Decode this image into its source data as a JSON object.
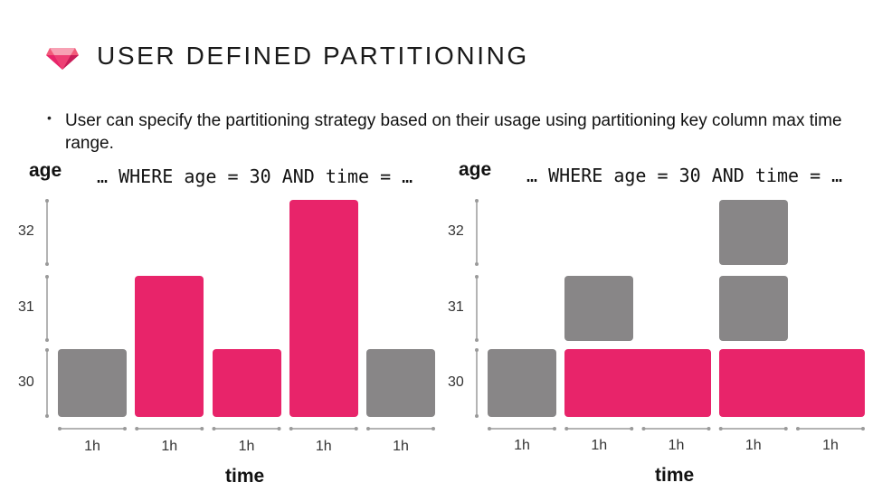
{
  "title": "USER DEFINED PARTITIONING",
  "bullet": "User can specify the partitioning strategy based on their usage using partitioning key column max time range.",
  "colors": {
    "accent": "#e8246a",
    "neutral": "#888687"
  },
  "logo_icon": "ruby-gem-icon",
  "panels": [
    {
      "y_title": "age",
      "x_title": "time",
      "query": "… WHERE age = 30 AND time = …",
      "y_ticks": [
        "30",
        "31",
        "32"
      ],
      "x_ticks": [
        "1h",
        "1h",
        "1h",
        "1h",
        "1h"
      ],
      "partitions": [
        {
          "col_start": 0,
          "col_span": 1,
          "age_min": 30,
          "age_max": 30,
          "matched": false
        },
        {
          "col_start": 1,
          "col_span": 1,
          "age_min": 30,
          "age_max": 31,
          "matched": true
        },
        {
          "col_start": 2,
          "col_span": 1,
          "age_min": 30,
          "age_max": 30,
          "matched": true
        },
        {
          "col_start": 3,
          "col_span": 1,
          "age_min": 30,
          "age_max": 32,
          "matched": true
        },
        {
          "col_start": 4,
          "col_span": 1,
          "age_min": 30,
          "age_max": 30,
          "matched": false
        }
      ]
    },
    {
      "y_title": "age",
      "x_title": "time",
      "query": "… WHERE age = 30 AND time = …",
      "y_ticks": [
        "30",
        "31",
        "32"
      ],
      "x_ticks": [
        "1h",
        "1h",
        "1h",
        "1h",
        "1h"
      ],
      "partitions": [
        {
          "col_start": 0,
          "col_span": 1,
          "age_min": 30,
          "age_max": 30,
          "matched": false
        },
        {
          "col_start": 1,
          "col_span": 2,
          "age_min": 30,
          "age_max": 30,
          "matched": true
        },
        {
          "col_start": 1,
          "col_span": 1,
          "age_min": 31,
          "age_max": 31,
          "matched": false
        },
        {
          "col_start": 3,
          "col_span": 2,
          "age_min": 30,
          "age_max": 30,
          "matched": true
        },
        {
          "col_start": 3,
          "col_span": 1,
          "age_min": 31,
          "age_max": 31,
          "matched": false
        },
        {
          "col_start": 3,
          "col_span": 1,
          "age_min": 32,
          "age_max": 32,
          "matched": false
        }
      ]
    }
  ]
}
